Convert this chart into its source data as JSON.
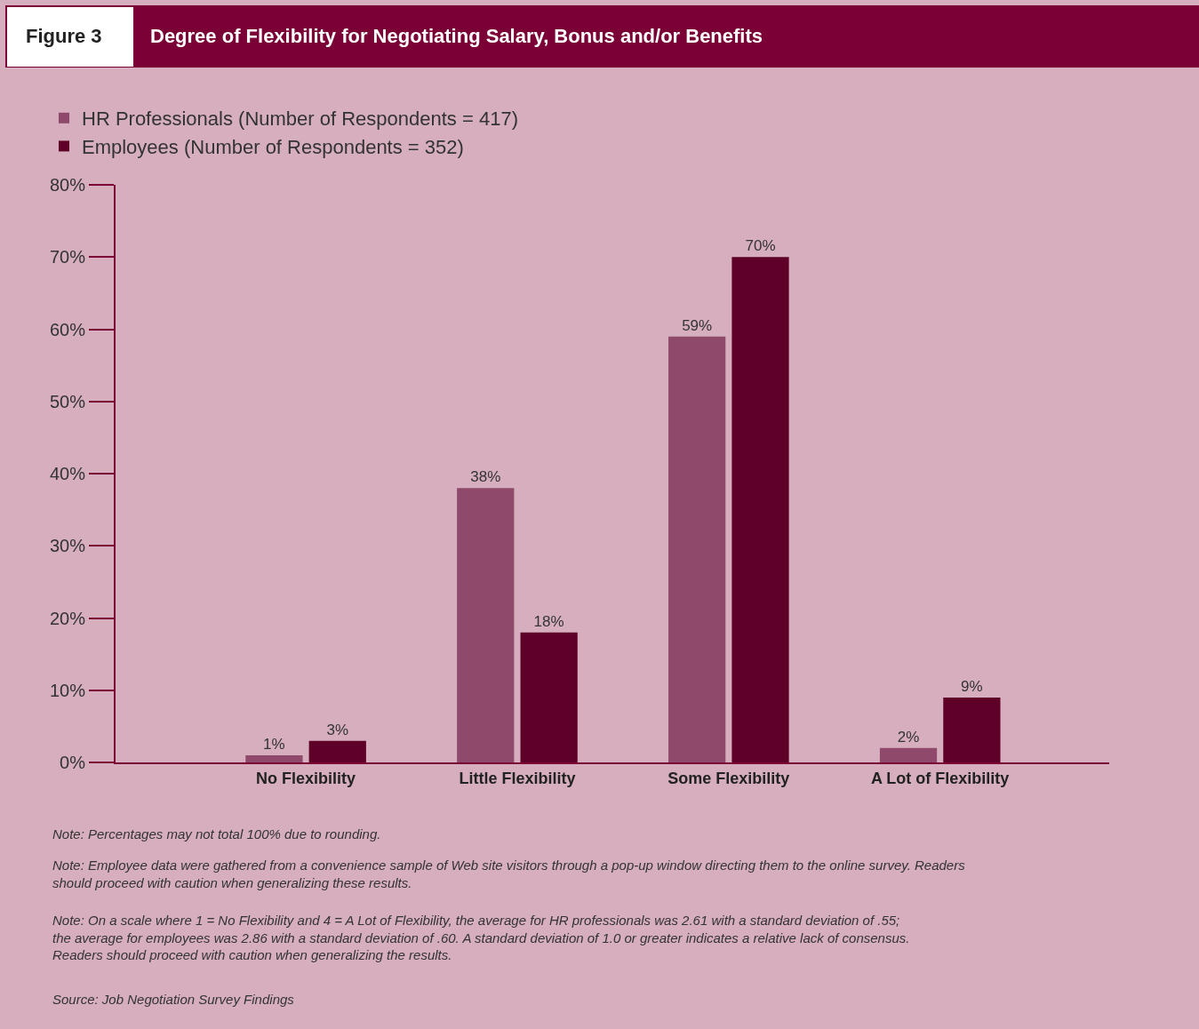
{
  "chart_data": {
    "type": "bar",
    "title": "Degree of Flexibility for Negotiating Salary, Bonus and/or Benefits",
    "subtitle": "Figure 3",
    "categories": [
      "No Flexibility",
      "Little Flexibility",
      "Some Flexibility",
      "A Lot of Flexibility"
    ],
    "series": [
      {
        "name": "HR Professionals (Number of Respondents = 417)",
        "color": "#8f4a6b",
        "values": [
          1,
          38,
          59,
          2
        ],
        "value_labels": [
          "1%",
          "38%",
          "59%",
          "2%"
        ]
      },
      {
        "name": "Employees (Number of Respondents = 352)",
        "color": "#5e0027",
        "values": [
          3,
          18,
          70,
          9
        ],
        "value_labels": [
          "3%",
          "18%",
          "70%",
          "9%"
        ]
      }
    ],
    "ylim": [
      0,
      80
    ],
    "yticks": [
      {
        "value": 0,
        "label": "0%"
      },
      {
        "value": 10,
        "label": "10%"
      },
      {
        "value": 20,
        "label": "20%"
      },
      {
        "value": 30,
        "label": "30%"
      },
      {
        "value": 40,
        "label": "40%"
      },
      {
        "value": 50,
        "label": "50%"
      },
      {
        "value": 60,
        "label": "60%"
      },
      {
        "value": 70,
        "label": "70%"
      },
      {
        "value": 80,
        "label": "80%"
      }
    ],
    "grid": false,
    "legend": "top left",
    "annotations": [
      "Note: Percentages may not total 100% due to rounding.",
      "Note: Employee data were gathered from a convenience sample of Web site visitors through a pop-up window directing them to the online survey. Readers should proceed with caution when generalizing these results.",
      "Note: On a scale where 1 = No Flexibility and 4 = A Lot of Flexibility, the average for HR professionals was 2.61 with a standard deviation of .55; the average for employees was 2.86 with a standard deviation of .60. A standard deviation of 1.0 or greater indicates a relative lack of consensus. Readers should proceed with caution when generalizing the results.",
      "Source: Job Negotiation Survey Findings"
    ]
  }
}
